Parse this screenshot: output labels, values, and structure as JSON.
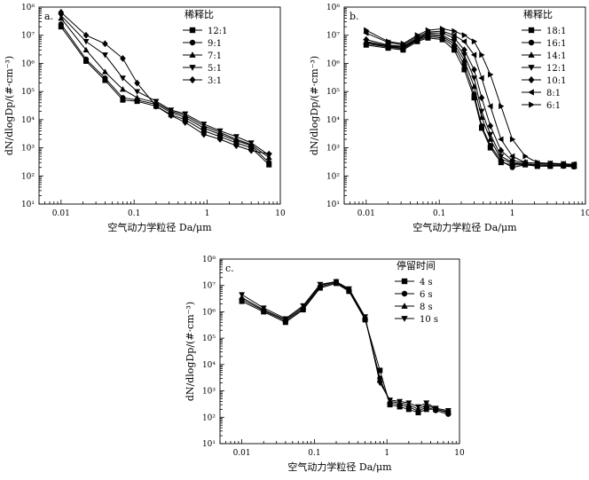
{
  "chart_data": [
    {
      "type": "line",
      "panel_label": "a.",
      "xlabel": "空气动力学粒径 Da/μm",
      "ylabel": "dN/dlogDp/(#·cm⁻³)",
      "xscale": "log",
      "yscale": "log",
      "xlim": [
        0.005,
        10
      ],
      "ylim": [
        10,
        100000000
      ],
      "x_tick_labels": [
        "0.01",
        "0.1",
        "1",
        "10"
      ],
      "y_tick_labels": [
        "10¹",
        "10²",
        "10³",
        "10⁴",
        "10⁵",
        "10⁶",
        "10⁷",
        "10⁸"
      ],
      "legend_title": "稀释比",
      "legend_position": "top-right",
      "x": [
        0.01,
        0.022,
        0.04,
        0.07,
        0.11,
        0.2,
        0.32,
        0.5,
        0.9,
        1.5,
        2.5,
        4.0,
        7.0
      ],
      "series": [
        {
          "name": "12:1",
          "marker": "square",
          "values": [
            20000000,
            1200000,
            250000,
            50000,
            45000,
            30000,
            15000,
            10000,
            4000,
            2500,
            1500,
            1000,
            250
          ]
        },
        {
          "name": "9:1",
          "marker": "circle",
          "values": [
            25000000,
            1400000,
            300000,
            60000,
            50000,
            35000,
            18000,
            12000,
            5000,
            3000,
            1800,
            1200,
            300
          ]
        },
        {
          "name": "7:1",
          "marker": "triangle-up",
          "values": [
            40000000,
            3000000,
            500000,
            120000,
            60000,
            40000,
            20000,
            14000,
            6000,
            3500,
            2000,
            1300,
            450
          ]
        },
        {
          "name": "5:1",
          "marker": "triangle-down",
          "values": [
            50000000,
            6000000,
            2000000,
            300000,
            100000,
            45000,
            22000,
            16000,
            7000,
            4000,
            2500,
            1500,
            550
          ]
        },
        {
          "name": "3:1",
          "marker": "diamond",
          "values": [
            65000000,
            10000000,
            5000000,
            1500000,
            200000,
            30000,
            14000,
            8000,
            3000,
            2000,
            1200,
            800,
            600
          ]
        }
      ]
    },
    {
      "type": "line",
      "panel_label": "b.",
      "xlabel": "空气动力学粒径 Da/μm",
      "ylabel": "dN/dlogDp/(#·cm⁻³)",
      "xscale": "log",
      "yscale": "log",
      "xlim": [
        0.005,
        10
      ],
      "ylim": [
        10,
        100000000
      ],
      "x_tick_labels": [
        "0.01",
        "0.1",
        "1",
        "10"
      ],
      "y_tick_labels": [
        "10¹",
        "10²",
        "10³",
        "10⁴",
        "10⁵",
        "10⁶",
        "10⁷",
        "10⁸"
      ],
      "legend_title": "稀释比",
      "legend_position": "top-right",
      "x": [
        0.01,
        0.02,
        0.032,
        0.05,
        0.07,
        0.11,
        0.16,
        0.22,
        0.3,
        0.38,
        0.5,
        0.7,
        1.0,
        1.5,
        2.2,
        3.3,
        5.0,
        7.0
      ],
      "series": [
        {
          "name": "18:1",
          "marker": "square",
          "values": [
            4500000,
            3500000,
            3000000,
            6000000,
            8000000,
            7000000,
            3000000,
            600000,
            60000,
            5000,
            1000,
            300,
            250,
            250,
            220,
            220,
            230,
            220
          ]
        },
        {
          "name": "16:1",
          "marker": "circle",
          "values": [
            5000000,
            3800000,
            3300000,
            6500000,
            9000000,
            8000000,
            4000000,
            900000,
            80000,
            6000,
            1200,
            350,
            200,
            250,
            250,
            230,
            220,
            210
          ]
        },
        {
          "name": "14:1",
          "marker": "triangle-up",
          "values": [
            5500000,
            4000000,
            3500000,
            7000000,
            10000000,
            9000000,
            5000000,
            1300000,
            150000,
            12000,
            2000,
            400,
            280,
            260,
            240,
            240,
            230,
            230
          ]
        },
        {
          "name": "12:1",
          "marker": "triangle-down",
          "values": [
            6000000,
            4200000,
            3800000,
            7500000,
            11000000,
            10000000,
            6000000,
            2000000,
            300000,
            20000,
            3000,
            500,
            300,
            270,
            250,
            250,
            240,
            240
          ]
        },
        {
          "name": "10:1",
          "marker": "diamond",
          "values": [
            7000000,
            4500000,
            4000000,
            8000000,
            12000000,
            12000000,
            8000000,
            3000000,
            600000,
            60000,
            6000,
            800,
            350,
            300,
            280,
            270,
            260,
            250
          ]
        },
        {
          "name": "8:1",
          "marker": "triangle-left",
          "values": [
            12000000,
            5500000,
            4500000,
            9000000,
            13000000,
            14000000,
            10000000,
            6000000,
            2000000,
            300000,
            30000,
            2000,
            500,
            300,
            280,
            280,
            270,
            260
          ]
        },
        {
          "name": "6:1",
          "marker": "triangle-right",
          "values": [
            15000000,
            6000000,
            5000000,
            10000000,
            15000000,
            17000000,
            14000000,
            10000000,
            6000000,
            2000000,
            400000,
            30000,
            2000,
            500,
            300,
            280,
            270,
            250
          ]
        }
      ]
    },
    {
      "type": "line",
      "panel_label": "c.",
      "xlabel": "空气动力学粒径 Da/μm",
      "ylabel": "dN/dlogDp/(#·cm⁻³)",
      "xscale": "log",
      "yscale": "log",
      "xlim": [
        0.005,
        10
      ],
      "ylim": [
        10,
        100000000
      ],
      "x_tick_labels": [
        "0.01",
        "0.1",
        "1",
        "10"
      ],
      "y_tick_labels": [
        "10¹",
        "10²",
        "10³",
        "10⁴",
        "10⁵",
        "10⁶",
        "10⁷",
        "10⁸"
      ],
      "legend_title": "停留时间",
      "legend_position": "top-right",
      "x": [
        0.01,
        0.02,
        0.04,
        0.07,
        0.12,
        0.2,
        0.3,
        0.5,
        0.8,
        1.1,
        1.5,
        2.0,
        2.7,
        3.5,
        4.7,
        7.0
      ],
      "series": [
        {
          "name": "4 s",
          "marker": "square",
          "values": [
            2500000,
            1000000,
            400000,
            1200000,
            8000000,
            12000000,
            6000000,
            500000,
            6000,
            300,
            250,
            200,
            150,
            200,
            200,
            150
          ]
        },
        {
          "name": "6 s",
          "marker": "circle",
          "values": [
            3000000,
            1100000,
            450000,
            1300000,
            9000000,
            13000000,
            6500000,
            550000,
            3000,
            350,
            300,
            250,
            170,
            250,
            180,
            130
          ]
        },
        {
          "name": "8 s",
          "marker": "triangle-up",
          "values": [
            3500000,
            1200000,
            500000,
            1500000,
            10000000,
            14000000,
            7000000,
            600000,
            2500,
            400,
            350,
            300,
            200,
            300,
            200,
            160
          ]
        },
        {
          "name": "10 s",
          "marker": "triangle-down",
          "values": [
            4500000,
            1400000,
            550000,
            1700000,
            11000000,
            14000000,
            7500000,
            650000,
            2000,
            450,
            400,
            350,
            250,
            350,
            220,
            180
          ]
        }
      ]
    }
  ]
}
